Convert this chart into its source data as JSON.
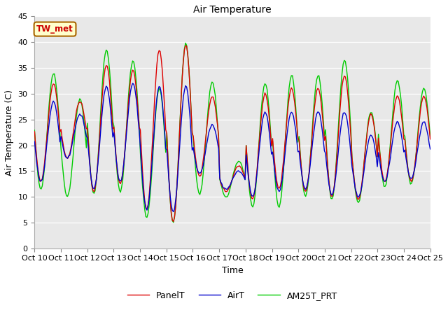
{
  "title": "Air Temperature",
  "xlabel": "Time",
  "ylabel": "Air Temperature (C)",
  "ylim": [
    0,
    45
  ],
  "yticks": [
    0,
    5,
    10,
    15,
    20,
    25,
    30,
    35,
    40,
    45
  ],
  "annotation_text": "TW_met",
  "annotation_color": "#cc0000",
  "annotation_bg": "#ffffcc",
  "annotation_border": "#aa6600",
  "line_colors": {
    "PanelT": "#dd0000",
    "AirT": "#0000cc",
    "AM25T_PRT": "#00cc00"
  },
  "line_width": 1.0,
  "xtick_labels": [
    "Oct 10",
    "Oct 11",
    "Oct 12",
    "Oct 13",
    "Oct 14",
    "Oct 15",
    "Oct 16",
    "Oct 17",
    "Oct 18",
    "Oct 19",
    "Oct 20",
    "Oct 21",
    "Oct 22",
    "Oct 23",
    "Oct 24",
    "Oct 25"
  ],
  "n_days": 15,
  "pts_per_day": 24,
  "peaks_panel": [
    32.0,
    28.5,
    35.5,
    34.5,
    38.5,
    39.5,
    29.5,
    16.0,
    30.0,
    31.0,
    31.0,
    33.5,
    26.0,
    29.5,
    29.5
  ],
  "troughs_panel": [
    13.0,
    17.5,
    11.0,
    12.5,
    7.5,
    5.0,
    14.0,
    11.0,
    9.5,
    11.5,
    11.0,
    10.0,
    9.5,
    13.0,
    13.0
  ],
  "peaks_air": [
    28.5,
    26.0,
    31.5,
    32.0,
    31.5,
    31.5,
    24.0,
    15.0,
    26.5,
    26.5,
    26.5,
    26.5,
    22.0,
    24.5,
    24.5
  ],
  "troughs_air": [
    13.0,
    17.5,
    11.5,
    13.0,
    7.5,
    7.0,
    14.5,
    11.5,
    10.0,
    11.0,
    11.5,
    10.5,
    10.0,
    13.0,
    13.5
  ],
  "peaks_am25t": [
    34.0,
    29.0,
    38.5,
    36.5,
    31.0,
    39.8,
    32.3,
    17.0,
    32.0,
    33.5,
    33.5,
    36.5,
    26.5,
    32.5,
    31.0
  ],
  "troughs_am25t": [
    11.5,
    10.0,
    10.5,
    11.0,
    6.0,
    5.0,
    10.5,
    10.0,
    8.0,
    8.0,
    10.0,
    9.5,
    9.0,
    12.0,
    12.5
  ]
}
